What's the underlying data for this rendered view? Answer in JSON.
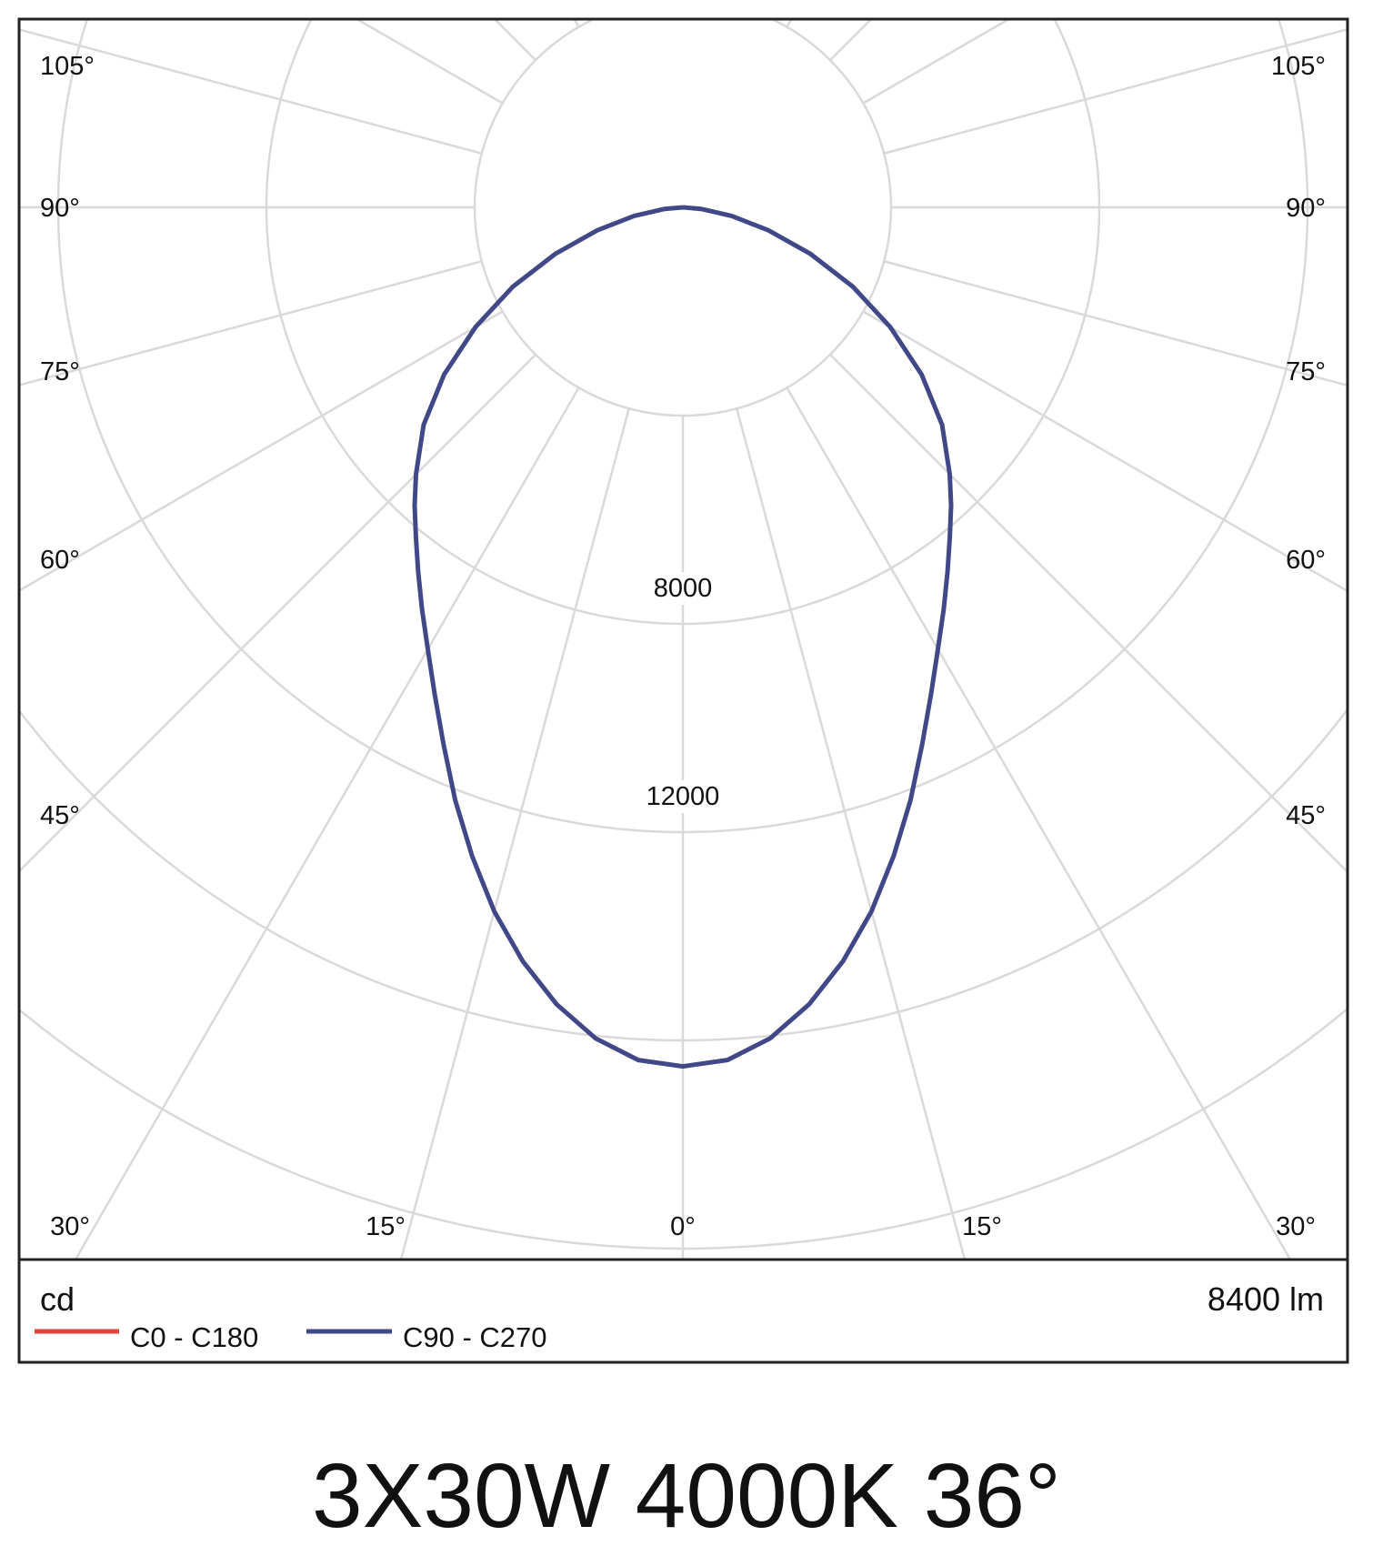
{
  "chart_data": {
    "type": "polar",
    "unit": "cd",
    "flux": "8400 lm",
    "ring_labels": [
      "8000",
      "12000"
    ],
    "rings_cd": [
      4000,
      8000,
      12000,
      16000,
      20000,
      24000
    ],
    "angle_labels_left": [
      {
        "angle": 105,
        "text": "105°"
      },
      {
        "angle": 90,
        "text": "90°"
      },
      {
        "angle": 75,
        "text": "75°"
      },
      {
        "angle": 60,
        "text": "60°"
      },
      {
        "angle": 45,
        "text": "45°"
      }
    ],
    "angle_labels_right": [
      {
        "angle": 105,
        "text": "105°"
      },
      {
        "angle": 90,
        "text": "90°"
      },
      {
        "angle": 75,
        "text": "75°"
      },
      {
        "angle": 60,
        "text": "60°"
      },
      {
        "angle": 45,
        "text": "45°"
      }
    ],
    "angle_labels_bottom": [
      {
        "angle": -30,
        "text": "30°"
      },
      {
        "angle": -15,
        "text": "15°"
      },
      {
        "angle": 0,
        "text": "0°"
      },
      {
        "angle": 15,
        "text": "15°"
      },
      {
        "angle": 30,
        "text": "30°"
      }
    ],
    "series": [
      {
        "name": "C0 - C180",
        "color": "#e0443a",
        "angles": [
          0,
          3,
          6,
          9,
          12,
          15,
          18,
          21,
          24,
          27,
          30,
          33,
          36,
          39,
          42,
          45,
          50,
          55,
          60,
          65,
          70,
          75,
          80,
          85,
          90
        ],
        "values": [
          16500,
          16400,
          16050,
          15500,
          14800,
          14000,
          13100,
          12200,
          11300,
          10500,
          9800,
          9200,
          8650,
          8150,
          7700,
          7250,
          6500,
          5600,
          4600,
          3600,
          2600,
          1700,
          950,
          350,
          0
        ]
      },
      {
        "name": "C90 - C270",
        "color": "#404888",
        "angles": [
          0,
          3,
          6,
          9,
          12,
          15,
          18,
          21,
          24,
          27,
          30,
          33,
          36,
          39,
          42,
          45,
          50,
          55,
          60,
          65,
          70,
          75,
          80,
          85,
          90
        ],
        "values": [
          16500,
          16400,
          16050,
          15500,
          14800,
          14000,
          13100,
          12200,
          11300,
          10500,
          9800,
          9200,
          8650,
          8150,
          7700,
          7250,
          6500,
          5600,
          4600,
          3600,
          2600,
          1700,
          950,
          350,
          0
        ]
      }
    ]
  },
  "caption": "3X30W 4000K 36°"
}
